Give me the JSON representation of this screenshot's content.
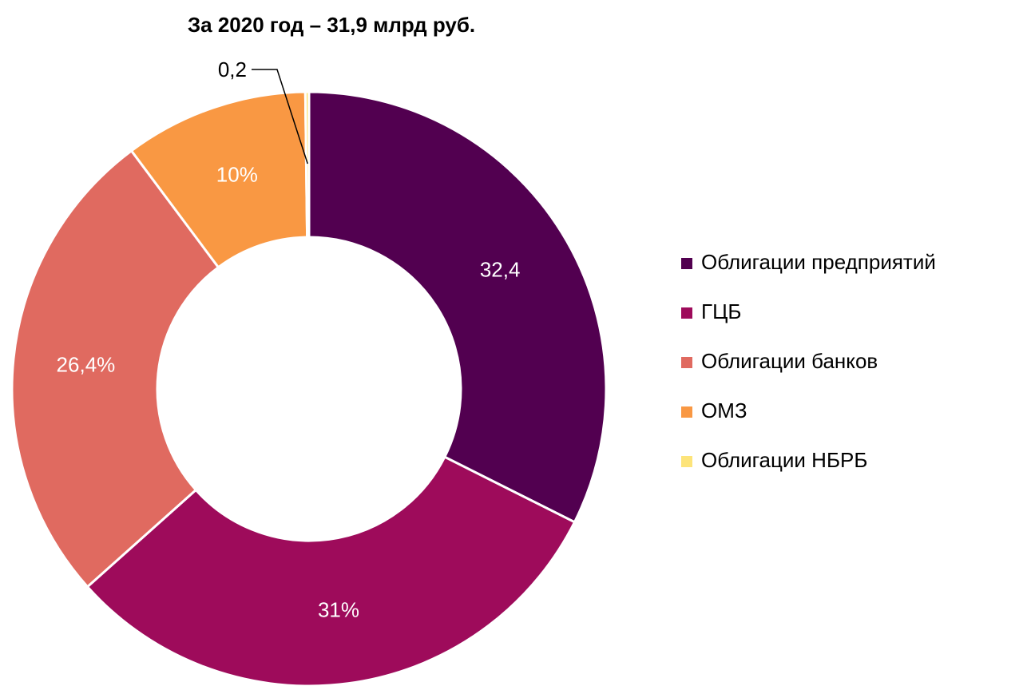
{
  "chart_data": {
    "type": "donut",
    "title": "За 2020 год – 31,9 млрд руб.",
    "categories": [
      "Облигации предприятий",
      "ГЦБ",
      "Облигации банков",
      "ОМЗ",
      "Облигации НБРБ"
    ],
    "values": [
      32.4,
      31,
      26.4,
      10,
      0.2
    ],
    "value_labels": [
      "32,4",
      "31%",
      "26,4%",
      "10%",
      "0,2"
    ],
    "colors": [
      "#520050",
      "#9e0b5b",
      "#e06a60",
      "#f99843",
      "#fde47a"
    ],
    "legend": "right"
  }
}
